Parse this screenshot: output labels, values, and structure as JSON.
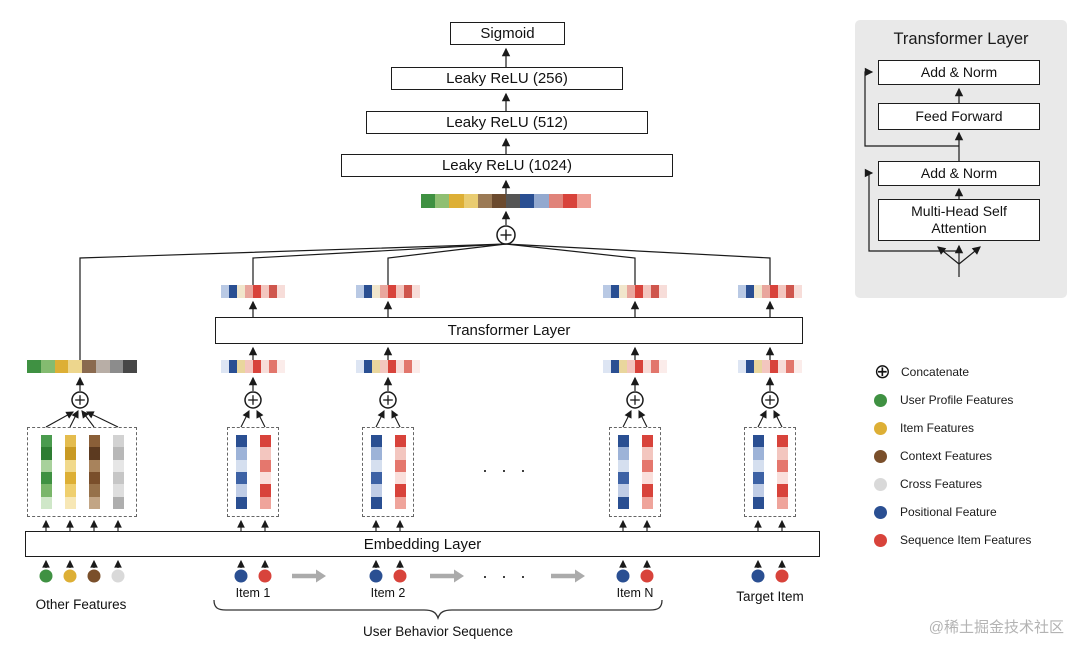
{
  "mlp": {
    "sigmoid": "Sigmoid",
    "relu_256": "Leaky ReLU (256)",
    "relu_512": "Leaky ReLU (512)",
    "relu_1024": "Leaky ReLU (1024)"
  },
  "transformer_layer": {
    "label": "Transformer Layer"
  },
  "embedding_layer": {
    "label": "Embedding  Layer"
  },
  "bottom_labels": {
    "other_features": "Other Features",
    "item_1": "Item 1",
    "item_2": "Item 2",
    "item_n": "Item N",
    "target_item": "Target Item",
    "user_behavior_sequence": "User Behavior Sequence"
  },
  "ellipsis": "· · ·",
  "detail_panel": {
    "title": "Transformer Layer",
    "add_norm_top": "Add & Norm",
    "feed_forward": "Feed Forward",
    "add_norm_bottom": "Add & Norm",
    "multi_head": "Multi-Head Self Attention"
  },
  "legend": {
    "concat": {
      "symbol": "⊕",
      "label": "Concatenate"
    },
    "items": [
      {
        "label": "User Profile Features",
        "color": "#3f9142"
      },
      {
        "label": "Item Features",
        "color": "#ddaf35"
      },
      {
        "label": "Context Features",
        "color": "#7a4f2b"
      },
      {
        "label": "Cross Features",
        "color": "#d9d9d9"
      },
      {
        "label": "Positional Feature",
        "color": "#2a4f92"
      },
      {
        "label": "Sequence Item Features",
        "color": "#d8433b"
      }
    ]
  },
  "watermark": "@稀土掘金技术社区",
  "bars": {
    "concat_top": [
      "#3f9142",
      "#8fbf72",
      "#ddaf35",
      "#e9cc71",
      "#9b7a55",
      "#6b4a2e",
      "#555555",
      "#2a4f92",
      "#93a9cf",
      "#e0837a",
      "#d8433b",
      "#ef9f96"
    ],
    "item_out": [
      "#b9c9e4",
      "#2a4f92",
      "#f1e6cc",
      "#e9a69d",
      "#d8433b",
      "#f3c6bf",
      "#cf564d",
      "#f7ddd9"
    ],
    "item_in": [
      "#dde5f3",
      "#2a4f92",
      "#e9d69d",
      "#f3c6bf",
      "#d8433b",
      "#f7ddd9",
      "#e2766c",
      "#fbecea"
    ],
    "other_in": [
      "#3f9142",
      "#84bb70",
      "#ddaf35",
      "#edd68d",
      "#8a6a4f",
      "#b8aea6",
      "#8c8c8c",
      "#474747"
    ]
  },
  "embedding_columns": {
    "green": [
      "#4a9b4e",
      "#2e7d32",
      "#a8d19c",
      "#3f9142",
      "#7ab66a",
      "#cfe7c8"
    ],
    "gold": [
      "#e4bc4e",
      "#c99a23",
      "#f1d98b",
      "#ddaf35",
      "#efcf6e",
      "#f7e7b5"
    ],
    "brown": [
      "#8a5f38",
      "#5c3a20",
      "#a8835c",
      "#7a4f2b",
      "#96714a",
      "#c2a585"
    ],
    "gray": [
      "#d2d2d2",
      "#b8b8b8",
      "#e6e6e6",
      "#c6c6c6",
      "#dedede",
      "#aeaeae"
    ],
    "blue": [
      "#2a4f92",
      "#9db3d8",
      "#d5dfef",
      "#3d62a5",
      "#c0cde6",
      "#2a4f92"
    ],
    "red": [
      "#d8433b",
      "#f3c6bf",
      "#e5776d",
      "#fadfdb",
      "#d8433b",
      "#efa49b"
    ]
  },
  "dots": {
    "other": [
      "#3f9142",
      "#ddaf35",
      "#7a4f2b",
      "#d9d9d9"
    ],
    "item": [
      "#2a4f92",
      "#d8433b"
    ]
  }
}
